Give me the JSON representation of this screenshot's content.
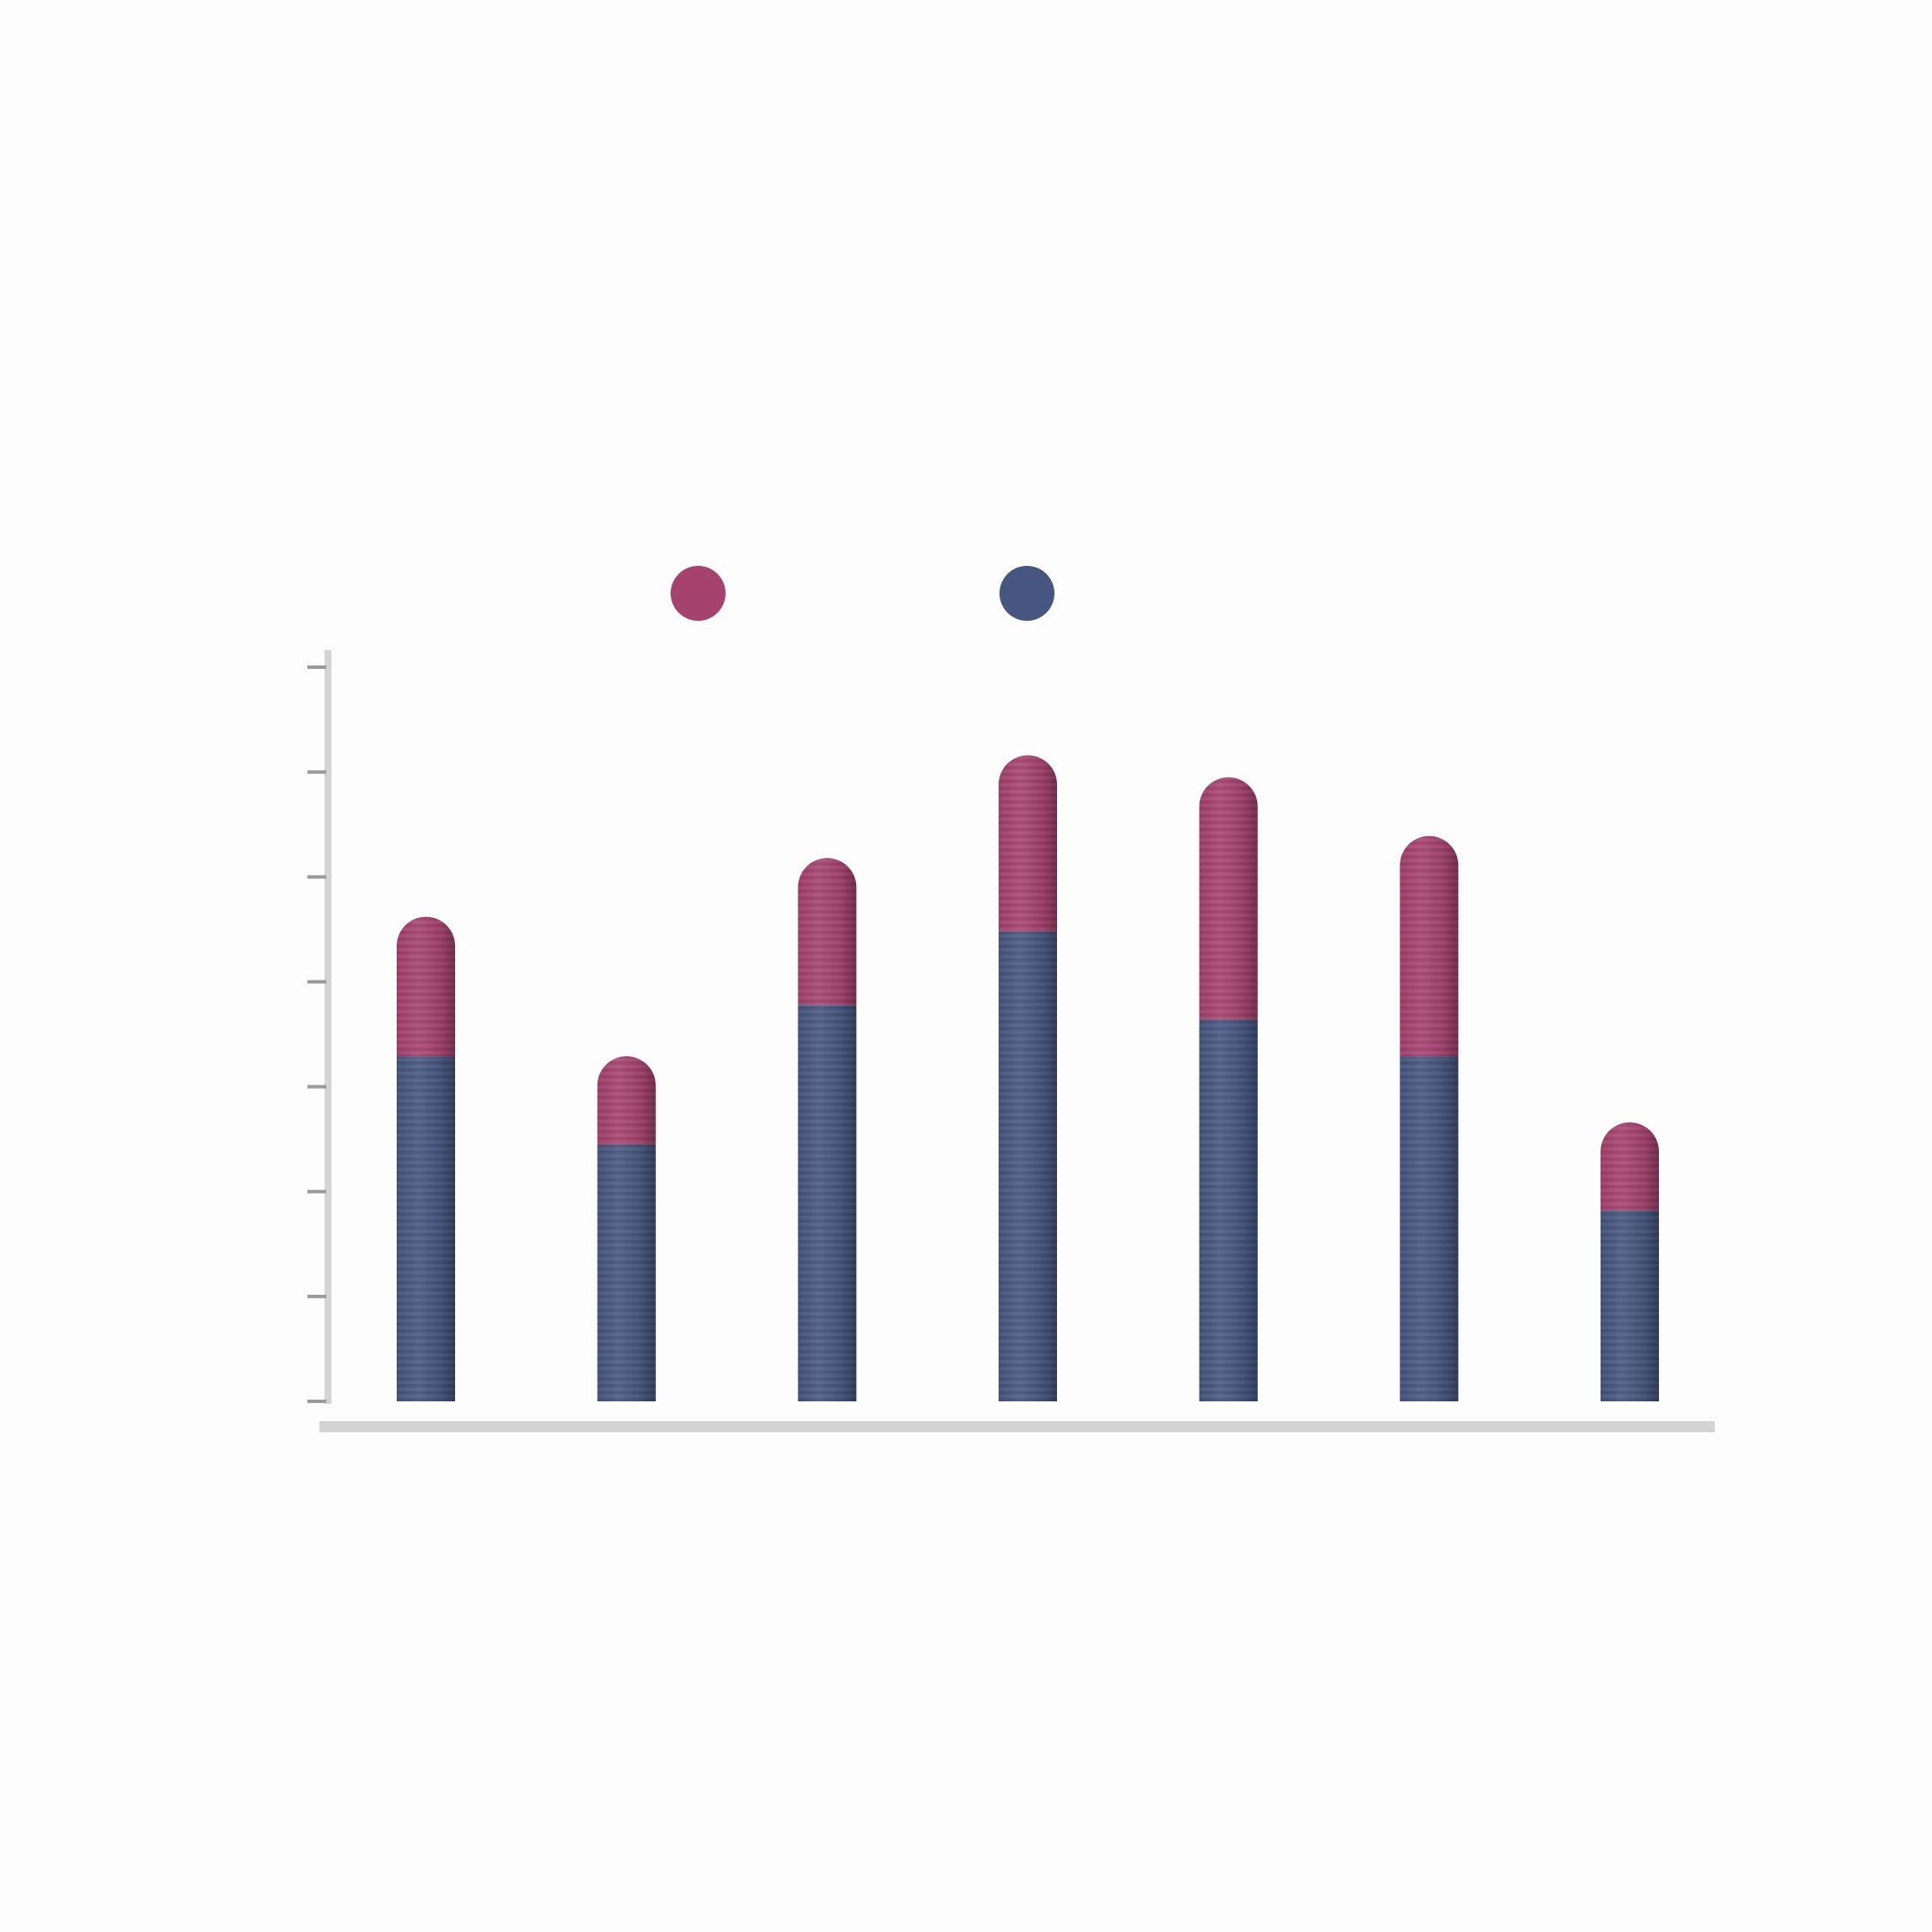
{
  "chart_data": {
    "type": "bar",
    "stacked": true,
    "categories": [
      "",
      "",
      "",
      "",
      "",
      "",
      ""
    ],
    "series": [
      {
        "values": [
          47,
          35,
          54,
          64,
          52,
          47,
          26
        ],
        "color": "#475680"
      },
      {
        "values": [
          19,
          12,
          20,
          24,
          33,
          30,
          12
        ],
        "color": "#a6426e"
      }
    ],
    "ylim": [
      0,
      100
    ],
    "ytick_count": 8,
    "legend": {
      "position": "top",
      "markers": [
        "#a6426e",
        "#475680"
      ]
    },
    "grid": false,
    "axis_color": "#d4d4d4",
    "tick_color": "#9a9a9a",
    "background": "#fdfdfd"
  }
}
